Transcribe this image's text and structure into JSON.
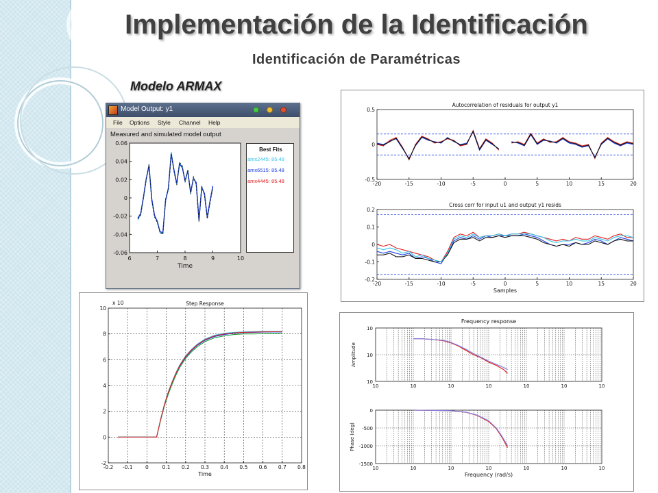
{
  "slide": {
    "title": "Implementación de la Identificación",
    "subtitle": "Identificación de Paramétricas",
    "model_label": "Modelo ARMAX"
  },
  "model_output_window": {
    "window_title": "Model Output: y1",
    "menu": [
      "File",
      "Options",
      "Style",
      "Channel",
      "Help"
    ],
    "plot_title": "Measured and simulated model output",
    "xlabel": "Time",
    "best_fits": {
      "title": "Best Fits",
      "items": [
        {
          "label": "amx2445: 85.49",
          "color": "#33c3e8"
        },
        {
          "label": "amx6515: 85.48",
          "color": "#1f3fe0"
        },
        {
          "label": "amx4445: 85.48",
          "color": "#e02020"
        }
      ]
    },
    "window_dot_colors": [
      "#46c846",
      "#f0c030",
      "#e05030"
    ],
    "chart_data": {
      "type": "line",
      "xlabel": "Time",
      "ylabel": "",
      "xlim": [
        6,
        10
      ],
      "ylim": [
        -0.06,
        0.06
      ],
      "x_ticks": [
        "6",
        "7",
        "8",
        "9",
        "10"
      ],
      "y_ticks": [
        "0.06",
        "0.04",
        "0.02",
        "0",
        "-0.02",
        "-0.04",
        "-0.06"
      ],
      "x": [
        6.3,
        6.4,
        6.5,
        6.6,
        6.7,
        6.8,
        6.9,
        7.0,
        7.1,
        7.2,
        7.3,
        7.4,
        7.5,
        7.6,
        7.7,
        7.8,
        7.9,
        8.0,
        8.1,
        8.2,
        8.3,
        8.4,
        8.5,
        8.6,
        8.7,
        8.8,
        8.9,
        9.0
      ],
      "series": [
        {
          "values": [
            -0.024,
            -0.018,
            0.0,
            0.02,
            0.036,
            -0.002,
            -0.02,
            -0.025,
            -0.038,
            -0.039,
            -0.002,
            0.01,
            0.05,
            0.03,
            0.015,
            0.038,
            0.034,
            0.018,
            0.03,
            0.005,
            0.022,
            0.016,
            -0.025,
            0.012,
            0.004,
            -0.022,
            -0.004,
            0.012
          ],
          "color": "#33c3e8"
        },
        {
          "values": [
            -0.022,
            -0.017,
            0.001,
            0.021,
            0.035,
            -0.001,
            -0.019,
            -0.026,
            -0.037,
            -0.038,
            -0.003,
            0.011,
            0.048,
            0.031,
            0.016,
            0.037,
            0.033,
            0.019,
            0.029,
            0.006,
            0.021,
            0.017,
            -0.024,
            0.011,
            0.005,
            -0.021,
            -0.003,
            0.013
          ],
          "color": "#1f3fe0"
        },
        {
          "values": [
            -0.023,
            -0.019,
            0.0,
            0.02,
            0.037,
            -0.003,
            -0.021,
            -0.027,
            -0.038,
            -0.04,
            -0.001,
            0.009,
            0.049,
            0.029,
            0.014,
            0.039,
            0.035,
            0.017,
            0.031,
            0.004,
            0.023,
            0.015,
            -0.026,
            0.013,
            0.003,
            -0.023,
            -0.005,
            0.011
          ],
          "color": "#222222"
        }
      ]
    }
  },
  "residuals_panel": {
    "charts": [
      {
        "type": "line",
        "title": "Autocorrelation of residuals for output y1",
        "xlabel": "",
        "xlim": [
          -20,
          20
        ],
        "ylim": [
          -0.5,
          0.5
        ],
        "x_ticks": [
          "-20",
          "-15",
          "-10",
          "-5",
          "0",
          "5",
          "10",
          "15",
          "20"
        ],
        "y_ticks": [
          "0.5",
          "0",
          "-0.5"
        ],
        "confidence": 0.15,
        "x": [
          -20,
          -19,
          -18,
          -17,
          -16,
          -15,
          -14,
          -13,
          -12,
          -11,
          -10,
          -9,
          -8,
          -7,
          -6,
          -5,
          -4,
          -3,
          -2,
          -1,
          1,
          2,
          3,
          4,
          5,
          6,
          7,
          8,
          9,
          10,
          11,
          12,
          13,
          14,
          15,
          16,
          17,
          18,
          19,
          20
        ],
        "series": [
          {
            "values": [
              0.02,
              0.0,
              0.05,
              0.08,
              -0.06,
              -0.2,
              -0.02,
              0.1,
              0.06,
              0.04,
              0.02,
              0.1,
              0.04,
              0.0,
              0.02,
              0.18,
              -0.08,
              0.06,
              0.0,
              -0.06,
              0.04,
              0.02,
              -0.02,
              0.14,
              0.0,
              0.06,
              0.05,
              0.02,
              0.08,
              0.02,
              0.0,
              -0.04,
              -0.02,
              -0.18,
              0.0,
              0.08,
              0.02,
              -0.02,
              0.02,
              0.0
            ],
            "color": "#1f3fe0"
          },
          {
            "values": [
              0.0,
              -0.02,
              0.06,
              0.1,
              -0.04,
              -0.22,
              0.0,
              0.12,
              0.08,
              0.02,
              0.04,
              0.08,
              0.06,
              -0.02,
              0.0,
              0.2,
              -0.06,
              0.08,
              0.02,
              -0.08,
              0.02,
              0.04,
              0.0,
              0.16,
              0.02,
              0.08,
              0.03,
              0.04,
              0.1,
              0.04,
              0.02,
              -0.02,
              0.0,
              -0.2,
              0.02,
              0.1,
              0.04,
              0.0,
              0.04,
              0.02
            ],
            "color": "#e02020"
          },
          {
            "values": [
              0.01,
              -0.01,
              0.04,
              0.09,
              -0.05,
              -0.21,
              -0.01,
              0.11,
              0.07,
              0.03,
              0.03,
              0.09,
              0.05,
              -0.01,
              0.01,
              0.19,
              -0.07,
              0.07,
              0.01,
              -0.07,
              0.03,
              0.03,
              -0.01,
              0.15,
              0.01,
              0.07,
              0.04,
              0.03,
              0.09,
              0.03,
              0.01,
              -0.03,
              -0.01,
              -0.19,
              0.01,
              0.09,
              0.03,
              -0.01,
              0.03,
              0.01
            ],
            "color": "#111111"
          }
        ]
      },
      {
        "type": "line",
        "title": "Cross corr for input u1 and output y1 resids",
        "xlabel": "Samples",
        "xlim": [
          -20,
          20
        ],
        "ylim": [
          -0.2,
          0.2
        ],
        "x_ticks": [
          "-20",
          "-15",
          "-10",
          "-5",
          "0",
          "5",
          "10",
          "15",
          "20"
        ],
        "y_ticks": [
          "0.2",
          "0.1",
          "0",
          "-0.1",
          "-0.2"
        ],
        "confidence": 0.17,
        "x": [
          -20,
          -19,
          -18,
          -17,
          -16,
          -15,
          -14,
          -13,
          -12,
          -11,
          -10,
          -9,
          -8,
          -7,
          -6,
          -5,
          -4,
          -3,
          -2,
          -1,
          0,
          1,
          2,
          3,
          4,
          5,
          6,
          7,
          8,
          9,
          10,
          11,
          12,
          13,
          14,
          15,
          16,
          17,
          18,
          19,
          20
        ],
        "series": [
          {
            "values": [
              -0.04,
              -0.05,
              -0.04,
              -0.05,
              -0.06,
              -0.05,
              -0.08,
              -0.07,
              -0.08,
              -0.1,
              -0.11,
              -0.05,
              0.02,
              0.04,
              0.03,
              0.05,
              0.03,
              0.05,
              0.04,
              0.05,
              0.05,
              0.05,
              0.05,
              0.06,
              0.05,
              0.04,
              0.02,
              0.0,
              -0.01,
              0.0,
              0.0,
              0.01,
              0.0,
              0.01,
              0.03,
              0.02,
              0.0,
              0.02,
              0.04,
              0.03,
              0.02
            ],
            "color": "#1f3fe0"
          },
          {
            "values": [
              0.0,
              -0.01,
              0.0,
              -0.02,
              -0.03,
              -0.04,
              -0.05,
              -0.06,
              -0.07,
              -0.09,
              -0.1,
              -0.04,
              0.04,
              0.06,
              0.05,
              0.07,
              0.04,
              0.05,
              0.05,
              0.06,
              0.05,
              0.06,
              0.06,
              0.07,
              0.06,
              0.05,
              0.04,
              0.03,
              0.02,
              0.03,
              0.02,
              0.04,
              0.03,
              0.03,
              0.05,
              0.04,
              0.03,
              0.05,
              0.06,
              0.04,
              0.04
            ],
            "color": "#e02020"
          },
          {
            "values": [
              -0.06,
              -0.06,
              -0.05,
              -0.07,
              -0.07,
              -0.06,
              -0.08,
              -0.08,
              -0.09,
              -0.1,
              -0.1,
              -0.06,
              0.01,
              0.03,
              0.03,
              0.04,
              0.02,
              0.04,
              0.04,
              0.05,
              0.04,
              0.05,
              0.05,
              0.05,
              0.04,
              0.03,
              0.01,
              0.0,
              -0.01,
              0.0,
              -0.01,
              0.01,
              0.0,
              0.0,
              0.02,
              0.01,
              0.0,
              0.02,
              0.03,
              0.02,
              0.02
            ],
            "color": "#111111"
          },
          {
            "values": [
              -0.02,
              -0.03,
              -0.02,
              -0.03,
              -0.05,
              -0.04,
              -0.07,
              -0.06,
              -0.08,
              -0.09,
              -0.1,
              -0.05,
              0.03,
              0.05,
              0.04,
              0.06,
              0.04,
              0.05,
              0.05,
              0.06,
              0.05,
              0.06,
              0.06,
              0.06,
              0.06,
              0.05,
              0.04,
              0.02,
              0.01,
              0.02,
              0.02,
              0.03,
              0.02,
              0.02,
              0.04,
              0.03,
              0.02,
              0.04,
              0.05,
              0.05,
              0.04
            ],
            "color": "#33c3e8"
          }
        ]
      }
    ]
  },
  "step_panel": {
    "chart_data": {
      "type": "line",
      "title": "Step Response",
      "xlabel": "Time",
      "multiplier": "x 10",
      "xlim": [
        -0.2,
        0.8
      ],
      "ylim": [
        -2,
        10
      ],
      "x_ticks": [
        "-0.2",
        "-0.1",
        "0",
        "0.1",
        "0.2",
        "0.3",
        "0.4",
        "0.5",
        "0.6",
        "0.7",
        "0.8"
      ],
      "y_ticks": [
        "10",
        "8",
        "6",
        "4",
        "2",
        "0",
        "-2"
      ],
      "x": [
        -0.15,
        0.05,
        0.07,
        0.09,
        0.11,
        0.13,
        0.15,
        0.17,
        0.2,
        0.23,
        0.26,
        0.3,
        0.35,
        0.4,
        0.45,
        0.5,
        0.55,
        0.6,
        0.65,
        0.7
      ],
      "series": [
        {
          "values": [
            0,
            0,
            1.3,
            2.5,
            3.4,
            4.2,
            4.9,
            5.5,
            6.2,
            6.7,
            7.1,
            7.5,
            7.8,
            7.95,
            8.05,
            8.1,
            8.12,
            8.14,
            8.15,
            8.15
          ],
          "color": "#1f3fe0"
        },
        {
          "values": [
            0,
            0,
            1.25,
            2.4,
            3.3,
            4.1,
            4.8,
            5.4,
            6.1,
            6.6,
            7.0,
            7.4,
            7.7,
            7.85,
            7.95,
            8.0,
            8.0,
            8.02,
            8.03,
            8.03
          ],
          "color": "#20a040"
        },
        {
          "values": [
            0,
            0,
            1.35,
            2.55,
            3.5,
            4.3,
            5.0,
            5.6,
            6.3,
            6.8,
            7.2,
            7.6,
            7.9,
            8.05,
            8.12,
            8.16,
            8.18,
            8.2,
            8.2,
            8.2
          ],
          "color": "#33c3e8"
        },
        {
          "values": [
            0,
            0,
            1.3,
            2.5,
            3.45,
            4.25,
            4.95,
            5.55,
            6.25,
            6.75,
            7.15,
            7.55,
            7.85,
            8.0,
            8.08,
            8.12,
            8.14,
            8.16,
            8.17,
            8.17
          ],
          "color": "#e02020"
        }
      ]
    }
  },
  "freq_panel": {
    "charts": [
      {
        "type": "line",
        "title": "Frequency response",
        "ylabel": "Amplitude",
        "x_tick_base": "10",
        "y_tick_base": [
          "10",
          "10",
          "10"
        ],
        "x": [
          1,
          1.2,
          1.4,
          1.6,
          1.8,
          2.0,
          2.2,
          2.4,
          2.6,
          2.8,
          3.0,
          3.2,
          3.4,
          3.5
        ],
        "series": [
          {
            "values": [
              0.8,
              0.8,
              0.79,
              0.78,
              0.76,
              0.72,
              0.66,
              0.58,
              0.5,
              0.44,
              0.36,
              0.3,
              0.22,
              0.15
            ],
            "color": "#e02020"
          },
          {
            "values": [
              0.8,
              0.8,
              0.79,
              0.78,
              0.77,
              0.73,
              0.67,
              0.6,
              0.52,
              0.45,
              0.38,
              0.32,
              0.26,
              0.22
            ],
            "color": "#8080e0"
          }
        ]
      },
      {
        "type": "line",
        "ylabel": "Phase (deg)",
        "xlabel": "Frequency (rad/s)",
        "x_tick_base": "10",
        "y_ticks": [
          "0",
          "-500",
          "-1000",
          "-1500"
        ],
        "ylim": [
          -1500,
          0
        ],
        "x": [
          1,
          1.5,
          2.0,
          2.4,
          2.7,
          3.0,
          3.2,
          3.35,
          3.5
        ],
        "series": [
          {
            "values": [
              0,
              -5,
              -20,
              -60,
              -150,
              -320,
              -520,
              -760,
              -1050
            ],
            "color": "#e02020"
          },
          {
            "values": [
              0,
              -5,
              -18,
              -55,
              -140,
              -300,
              -500,
              -730,
              -1000
            ],
            "color": "#8080e0"
          }
        ]
      }
    ]
  }
}
